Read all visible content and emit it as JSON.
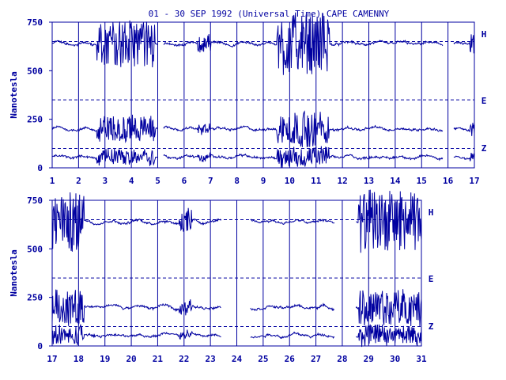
{
  "chart_data": {
    "type": "line",
    "title": "01 - 30 SEP 1992 (Universal Time) CAPE CAMENNY",
    "ylabel": "Nanotesla",
    "yticks": [
      "0",
      "250",
      "500",
      "750"
    ],
    "ylim": [
      0,
      750
    ],
    "grid": true,
    "components": [
      "H",
      "E",
      "Z"
    ],
    "reference_levels": {
      "H": 650,
      "E": 350,
      "Z": 100
    },
    "baselines": {
      "H": 640,
      "E": 200,
      "Z": 55
    },
    "colors": {
      "line": "#0000a0",
      "background": "#ffffff"
    },
    "panels": [
      {
        "name": "top",
        "xlim": [
          1,
          17
        ],
        "xticks": [
          "1",
          "2",
          "3",
          "4",
          "5",
          "6",
          "7",
          "8",
          "9",
          "10",
          "11",
          "12",
          "13",
          "14",
          "15",
          "16",
          "17"
        ],
        "gaps": [
          [
            5.0,
            5.2
          ],
          [
            15.8,
            16.2
          ]
        ],
        "disturbances": [
          {
            "start": 2.7,
            "end": 4.9,
            "amp": 1.0
          },
          {
            "start": 9.5,
            "end": 11.5,
            "amp": 1.3
          },
          {
            "start": 6.5,
            "end": 7.0,
            "amp": 0.4
          },
          {
            "start": 16.8,
            "end": 17.0,
            "amp": 0.6
          }
        ]
      },
      {
        "name": "bottom",
        "xlim": [
          17,
          31
        ],
        "xticks": [
          "17",
          "18",
          "19",
          "20",
          "21",
          "22",
          "23",
          "24",
          "25",
          "26",
          "27",
          "28",
          "29",
          "30",
          "31"
        ],
        "gaps": [
          [
            23.4,
            24.5
          ],
          [
            27.7,
            28.5
          ]
        ],
        "disturbances": [
          {
            "start": 17.0,
            "end": 18.2,
            "amp": 1.3
          },
          {
            "start": 21.8,
            "end": 22.3,
            "amp": 0.5
          },
          {
            "start": 28.6,
            "end": 31.0,
            "amp": 1.3
          }
        ]
      }
    ]
  }
}
